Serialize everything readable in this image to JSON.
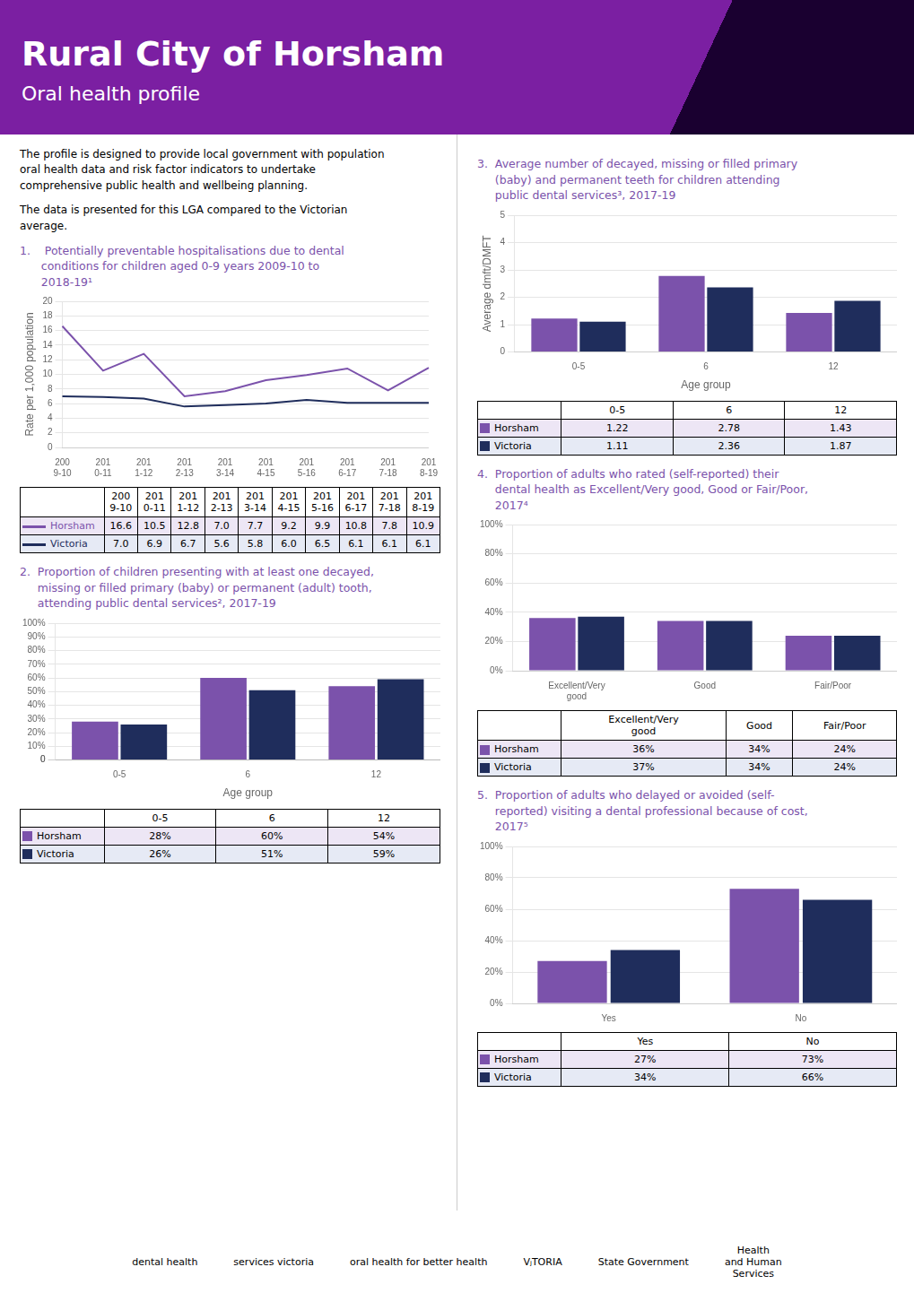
{
  "title": "Rural City of Horsham",
  "subtitle": "Oral health profile",
  "annotations": [
    "The profile is designed to provide local government with population\noral health data and risk factor indicators to undertake\ncomprehensive public health and wellbeing planning.",
    "The data is presented for this LGA compared to the Victorian\naverage."
  ],
  "footer": [
    "dental health",
    "services victoria",
    "oral health for better health",
    "VⱼTORIA",
    "State Government",
    "Health\nand Human\nServices"
  ],
  "chart_data": [
    {
      "type": "line",
      "title": "1.    Potentially preventable hospitalisations due to dental\n      conditions for children aged 0-9 years 2009-10 to\n      2018-19¹",
      "ylabel": "Rate per 1,000 population",
      "categories": [
        "200\n9-10",
        "201\n0-11",
        "201\n1-12",
        "201\n2-13",
        "201\n3-14",
        "201\n4-15",
        "201\n5-16",
        "201\n6-17",
        "201\n7-18",
        "201\n8-19"
      ],
      "series": [
        {
          "name": "Horsham",
          "color": "#7B52AB",
          "values": [
            16.6,
            10.5,
            12.8,
            7.0,
            7.7,
            9.2,
            9.9,
            10.8,
            7.8,
            10.9
          ],
          "value_labels": [
            "16.6",
            "10.5",
            "12.8",
            "7.0",
            "7.7",
            "9.2",
            "9.9",
            "10.8",
            "7.8",
            "10.9"
          ]
        },
        {
          "name": "Victoria",
          "color": "#1f2d5c",
          "values": [
            7.0,
            6.9,
            6.7,
            5.6,
            5.8,
            6.0,
            6.5,
            6.1,
            6.1,
            6.1
          ],
          "value_labels": [
            "7.0",
            "6.9",
            "6.7",
            "5.6",
            "5.8",
            "6.0",
            "6.5",
            "6.1",
            "6.1",
            "6.1"
          ]
        }
      ],
      "ylim": [
        0,
        20
      ],
      "yticks": [
        0,
        2,
        4,
        6,
        8,
        10,
        12,
        14,
        16,
        18,
        20
      ],
      "grid": true
    },
    {
      "type": "bar",
      "title": "2.  Proportion of children presenting with at least one decayed,\n     missing or filled primary (baby) or permanent (adult) tooth,\n     attending public dental services², 2017-19",
      "xlabel": "Age group",
      "categories": [
        "0-5",
        "6",
        "12"
      ],
      "series": [
        {
          "name": "Horsham",
          "color": "#7B52AB",
          "values": [
            0.28,
            0.6,
            0.54
          ],
          "value_labels": [
            "28%",
            "60%",
            "54%"
          ]
        },
        {
          "name": "Victoria",
          "color": "#1f2d5c",
          "values": [
            0.26,
            0.51,
            0.59
          ],
          "value_labels": [
            "26%",
            "51%",
            "59%"
          ]
        }
      ],
      "ylim": [
        0,
        1
      ],
      "yticks": [
        0,
        {
          "value": 0,
          "label": "0%"
        },
        {
          "value": 0.1,
          "label": "10%"
        },
        {
          "value": 0.2,
          "label": "20%"
        },
        {
          "value": 0.3,
          "label": "30%"
        },
        {
          "value": 0.4,
          "label": "40%"
        },
        {
          "value": 0.5,
          "label": "50%"
        },
        {
          "value": 0.6,
          "label": "60%"
        },
        {
          "value": 0.7,
          "label": "70%"
        },
        {
          "value": 0.8,
          "label": "80%"
        },
        {
          "value": 0.9,
          "label": "90%"
        },
        {
          "value": 1.0,
          "label": "100%"
        }
      ],
      "grid": true
    },
    {
      "type": "bar",
      "title": "3.  Average number of decayed, missing or filled primary\n     (baby) and permanent teeth for children attending\n     public dental services³, 2017-19",
      "xlabel": "Age group",
      "ylabel": "Average dmft/DMFT",
      "categories": [
        "0-5",
        "6",
        "12"
      ],
      "series": [
        {
          "name": "Horsham",
          "color": "#7B52AB",
          "values": [
            1.22,
            2.78,
            1.43
          ]
        },
        {
          "name": "Victoria",
          "color": "#1f2d5c",
          "values": [
            1.11,
            2.36,
            1.87
          ]
        }
      ],
      "ylim": [
        0,
        5
      ],
      "yticks": [
        0,
        1,
        2,
        3,
        4,
        5
      ],
      "grid": true
    },
    {
      "type": "bar",
      "title": "4.  Proportion of adults who rated (self-reported) their\n     dental health as Excellent/Very good, Good or Fair/Poor,\n     2017⁴",
      "categories": [
        "Excellent/Very\ngood",
        "Good",
        "Fair/Poor"
      ],
      "series": [
        {
          "name": "Horsham",
          "color": "#7B52AB",
          "values": [
            0.36,
            0.34,
            0.24
          ],
          "value_labels": [
            "36%",
            "34%",
            "24%"
          ]
        },
        {
          "name": "Victoria",
          "color": "#1f2d5c",
          "values": [
            0.37,
            0.34,
            0.24
          ],
          "value_labels": [
            "37%",
            "34%",
            "24%"
          ]
        }
      ],
      "ylim": [
        0,
        1
      ],
      "yticks": [
        {
          "value": 0,
          "label": "0%"
        },
        {
          "value": 0.2,
          "label": "20%"
        },
        {
          "value": 0.4,
          "label": "40%"
        },
        {
          "value": 0.6,
          "label": "60%"
        },
        {
          "value": 0.8,
          "label": "80%"
        },
        {
          "value": 1.0,
          "label": "100%"
        }
      ],
      "grid": true
    },
    {
      "type": "bar",
      "title": "5.  Proportion of adults who delayed or avoided (self-\n     reported) visiting a dental professional because of cost,\n     2017⁵",
      "categories": [
        "Yes",
        "No"
      ],
      "series": [
        {
          "name": "Horsham",
          "color": "#7B52AB",
          "values": [
            0.27,
            0.73
          ],
          "value_labels": [
            "27%",
            "73%"
          ]
        },
        {
          "name": "Victoria",
          "color": "#1f2d5c",
          "values": [
            0.34,
            0.66
          ],
          "value_labels": [
            "34%",
            "66%"
          ]
        }
      ],
      "ylim": [
        0,
        1
      ],
      "yticks": [
        {
          "value": 0,
          "label": "0%"
        },
        {
          "value": 0.2,
          "label": "20%"
        },
        {
          "value": 0.4,
          "label": "40%"
        },
        {
          "value": 0.6,
          "label": "60%"
        },
        {
          "value": 0.8,
          "label": "80%"
        },
        {
          "value": 1.0,
          "label": "100%"
        }
      ],
      "grid": true
    }
  ]
}
